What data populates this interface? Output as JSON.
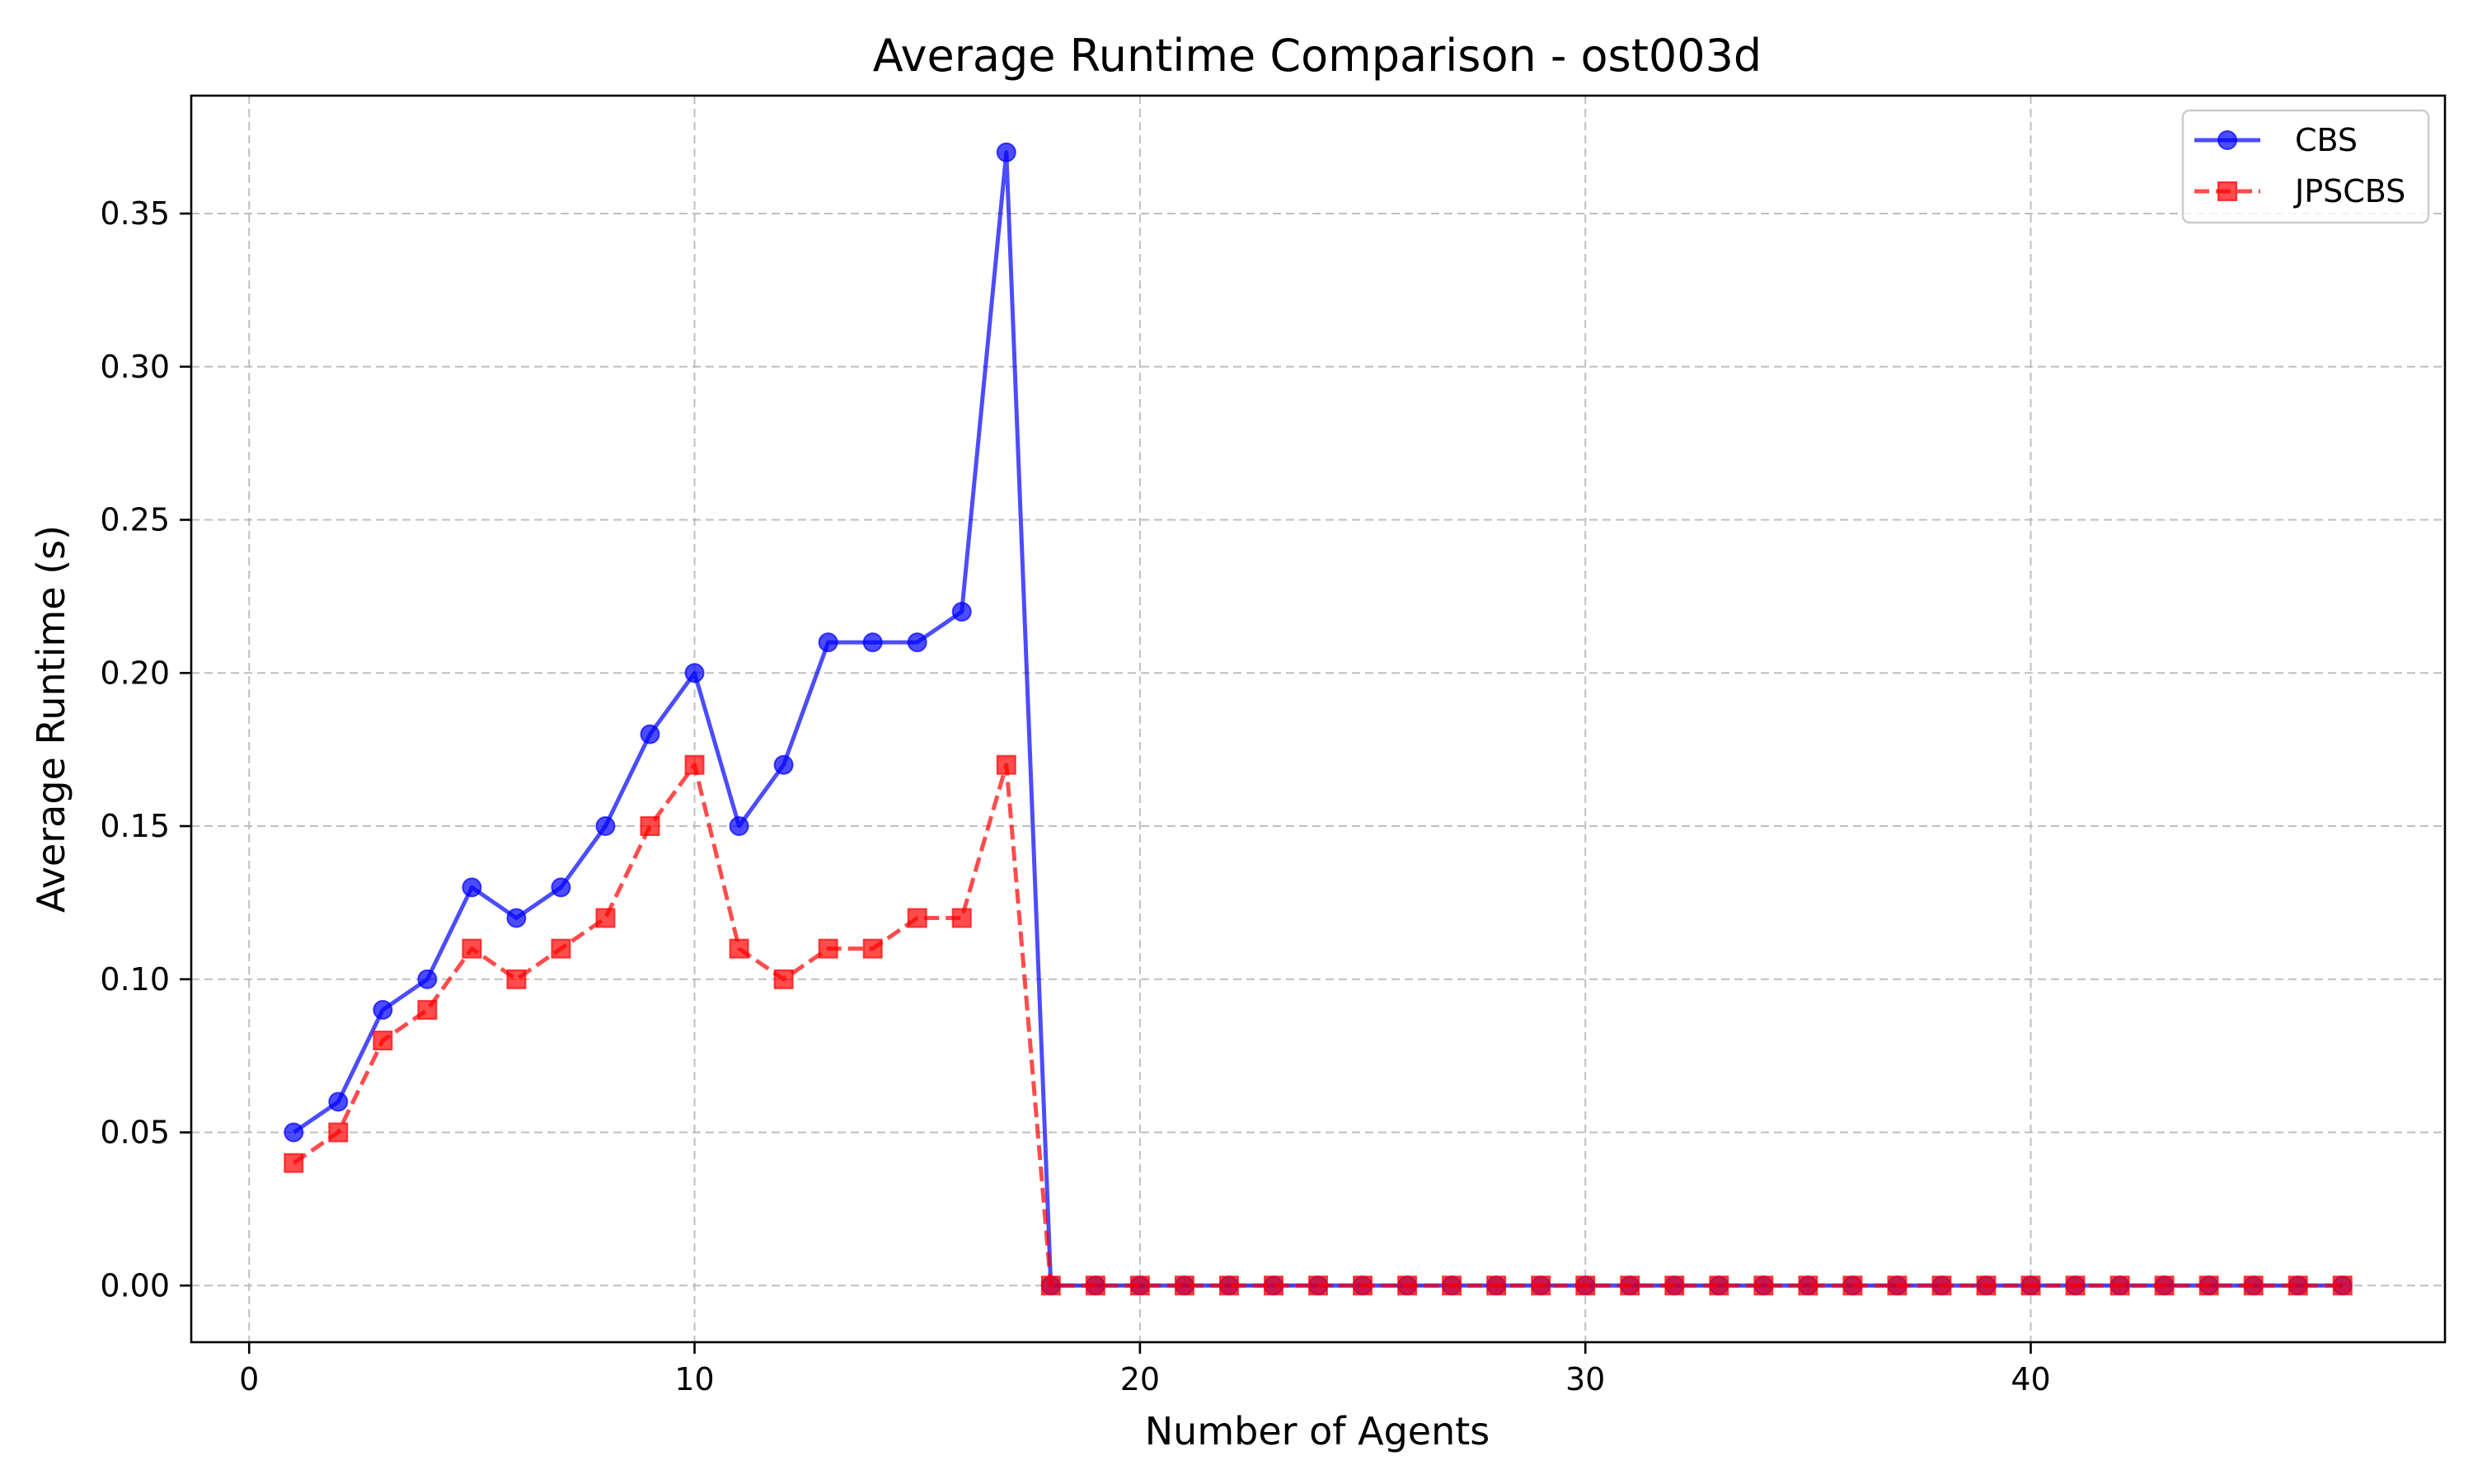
{
  "chart_data": {
    "type": "line",
    "title": "Average Runtime Comparison - ost003d",
    "xlabel": "Number of Agents",
    "ylabel": "Average Runtime (s)",
    "xlim": [
      -1.3,
      49.3
    ],
    "ylim": [
      -0.0185,
      0.3885
    ],
    "xticks": [
      0,
      10,
      20,
      30,
      40
    ],
    "yticks": [
      0.0,
      0.05,
      0.1,
      0.15,
      0.2,
      0.25,
      0.3,
      0.35
    ],
    "ytick_labels": [
      "0.00",
      "0.05",
      "0.10",
      "0.15",
      "0.20",
      "0.25",
      "0.30",
      "0.35"
    ],
    "grid": true,
    "legend_position": "top-right",
    "x": [
      1,
      2,
      3,
      4,
      5,
      6,
      7,
      8,
      9,
      10,
      11,
      12,
      13,
      14,
      15,
      16,
      17,
      18,
      19,
      20,
      21,
      22,
      23,
      24,
      25,
      26,
      27,
      28,
      29,
      30,
      31,
      32,
      33,
      34,
      35,
      36,
      37,
      38,
      39,
      40,
      41,
      42,
      43,
      44,
      45,
      46,
      47
    ],
    "series": [
      {
        "name": "CBS",
        "color": "#0000ff",
        "marker": "circle",
        "linestyle": "solid",
        "values": [
          0.05,
          0.06,
          0.09,
          0.1,
          0.13,
          0.12,
          0.13,
          0.15,
          0.18,
          0.2,
          0.15,
          0.17,
          0.21,
          0.21,
          0.21,
          0.22,
          0.37,
          0,
          0,
          0,
          0,
          0,
          0,
          0,
          0,
          0,
          0,
          0,
          0,
          0,
          0,
          0,
          0,
          0,
          0,
          0,
          0,
          0,
          0,
          0,
          0,
          0,
          0,
          0,
          0,
          0,
          0
        ]
      },
      {
        "name": "JPSCBS",
        "color": "#ff0000",
        "marker": "square",
        "linestyle": "dashed",
        "values": [
          0.04,
          0.05,
          0.08,
          0.09,
          0.11,
          0.1,
          0.11,
          0.12,
          0.15,
          0.17,
          0.11,
          0.1,
          0.11,
          0.11,
          0.12,
          0.12,
          0.17,
          0,
          0,
          0,
          0,
          0,
          0,
          0,
          0,
          0,
          0,
          0,
          0,
          0,
          0,
          0,
          0,
          0,
          0,
          0,
          0,
          0,
          0,
          0,
          0,
          0,
          0,
          0,
          0,
          0,
          0
        ]
      }
    ]
  }
}
